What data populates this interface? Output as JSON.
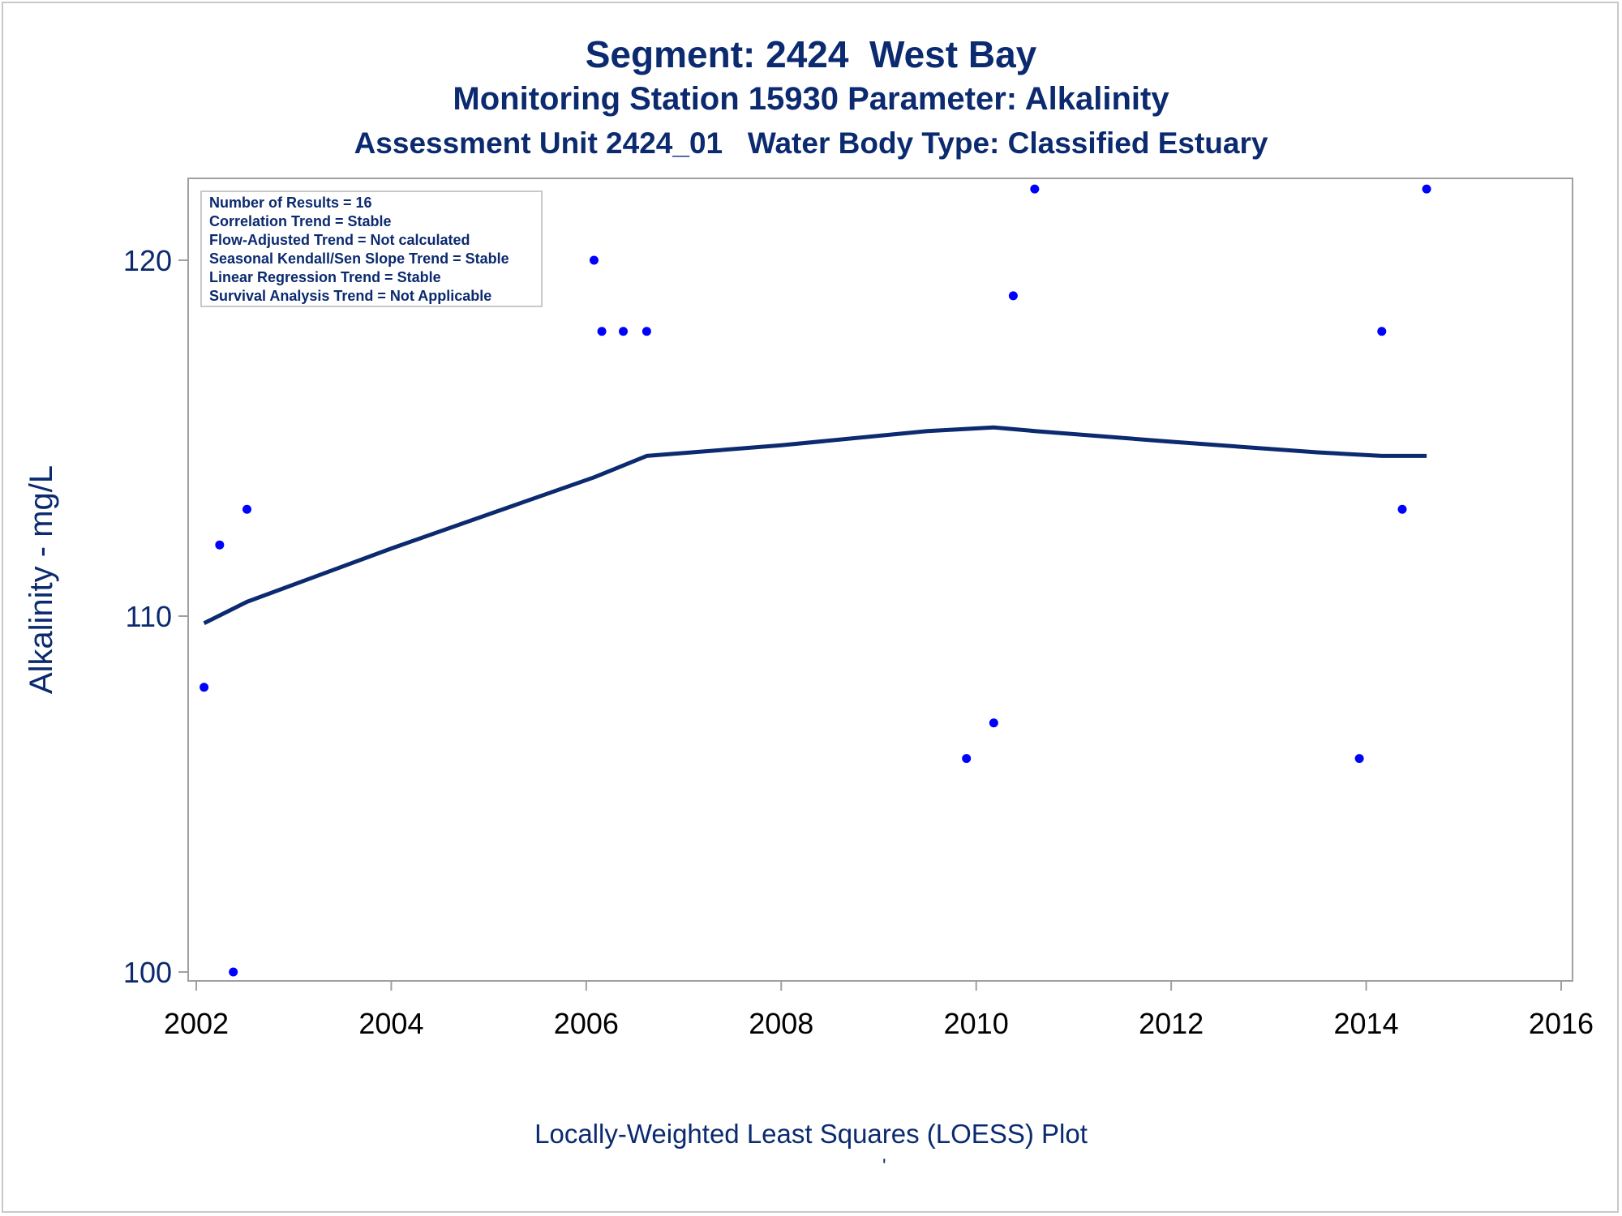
{
  "titles": {
    "line1": "Segment: 2424  West Bay",
    "line2": "Monitoring Station 15930 Parameter: Alkalinity",
    "line3": "Assessment Unit 2424_01   Water Body Type: Classified Estuary"
  },
  "footnote": "Locally-Weighted Least Squares (LOESS) Plot",
  "footmark": "'",
  "legend": {
    "lines": [
      "Number of Results = 16",
      "Correlation Trend = Stable",
      "Flow-Adjusted Trend = Not calculated",
      "Seasonal Kendall/Sen Slope Trend = Stable",
      "Linear Regression Trend = Stable",
      "Survival Analysis Trend = Not Applicable"
    ]
  },
  "colors": {
    "text": "#0b2a6f",
    "points": "#0000ff",
    "loess": "#0b2a6f",
    "axis": "#a0a0a0"
  },
  "chart_data": {
    "type": "scatter",
    "ylabel": "Alkalinity - mg/L",
    "xlabel": "",
    "xlim": [
      2002,
      2016.1
    ],
    "ylim": [
      99.75,
      122.3
    ],
    "xticks": [
      "2002",
      "2004",
      "2006",
      "2008",
      "2010",
      "2012",
      "2014",
      "2016"
    ],
    "yticks": [
      "100",
      "110",
      "120"
    ],
    "grid": false,
    "legend_position": "top-left",
    "series": [
      {
        "type": "scatter",
        "x": [
          2002.08,
          2002.24,
          2002.38,
          2002.52,
          2006.08,
          2006.16,
          2006.38,
          2006.62,
          2009.9,
          2010.18,
          2010.38,
          2010.6,
          2013.93,
          2014.16,
          2014.37,
          2014.62
        ],
        "y": [
          108,
          112,
          100,
          113,
          120,
          118,
          118,
          118,
          106,
          107,
          119,
          122,
          106,
          118,
          113,
          122
        ]
      },
      {
        "type": "line",
        "x": [
          2002.08,
          2002.52,
          2004.0,
          2006.08,
          2006.62,
          2008.0,
          2009.5,
          2010.18,
          2010.6,
          2012.0,
          2013.5,
          2014.16,
          2014.62
        ],
        "y": [
          109.8,
          110.4,
          111.9,
          113.9,
          114.5,
          114.8,
          115.2,
          115.3,
          115.2,
          114.9,
          114.6,
          114.5,
          114.5
        ]
      }
    ]
  }
}
